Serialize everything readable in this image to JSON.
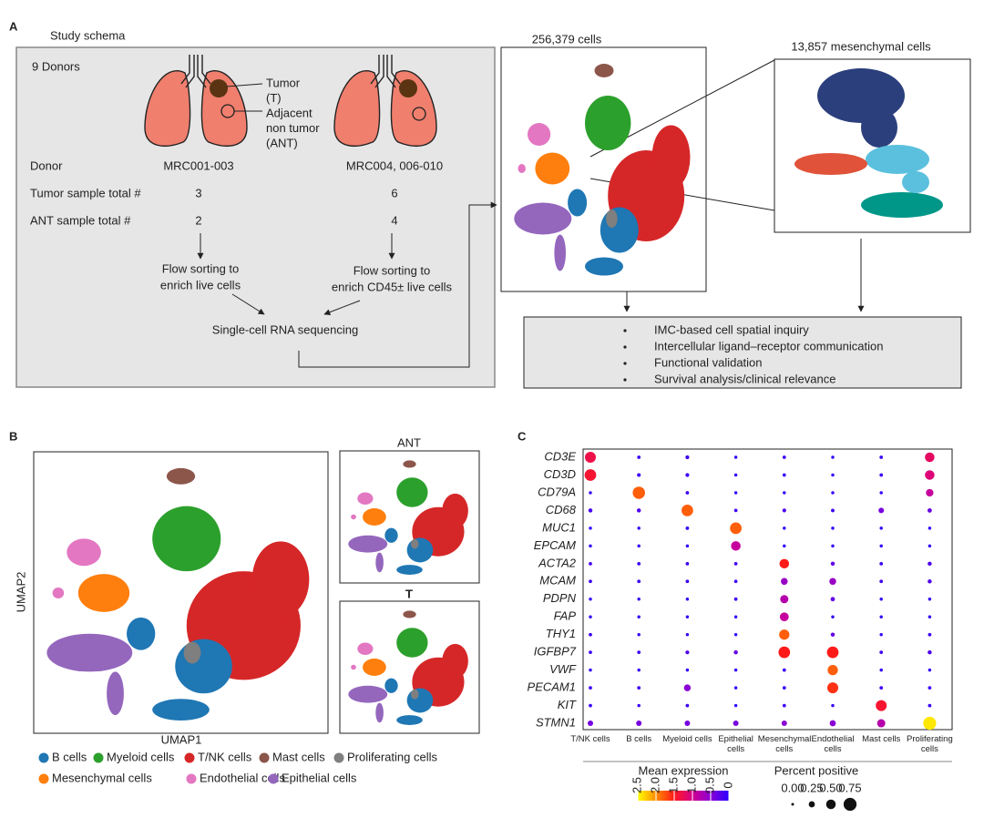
{
  "panel_a": {
    "label": "A",
    "title": "Study schema",
    "donors": "9 Donors",
    "lung_labels": [
      "Tumor",
      "(T)",
      "Adjacent",
      "non tumor",
      "(ANT)"
    ],
    "rows": [
      [
        "Donor",
        "MRC001-003",
        "MRC004, 006-010"
      ],
      [
        "Tumor sample total #",
        3,
        6
      ],
      [
        "ANT sample total #",
        2,
        4
      ]
    ],
    "flow": [
      [
        "Flow sorting to",
        "enrich live cells"
      ],
      [
        "Flow sorting to",
        "enrich CD45± live cells"
      ]
    ],
    "sequencing": "Single-cell RNA sequencing",
    "umap_title": "256,379 cells",
    "mesenchymal_title": "13,857 mesenchymal cells",
    "analyses": [
      "IMC-based cell spatial inquiry",
      "Intercellular ligand–receptor communication",
      "Functional validation",
      "Survival analysis/clinical relevance"
    ]
  },
  "panel_b": {
    "label": "B",
    "y_label": "UMAP2",
    "x_label": "UMAP1",
    "insets": [
      "ANT",
      "T"
    ],
    "legend": [
      {
        "name": "B cells",
        "color": "#1f77b4"
      },
      {
        "name": "Myeloid cells",
        "color": "#2ca02c"
      },
      {
        "name": "T/NK cells",
        "color": "#d62728"
      },
      {
        "name": "Mast cells",
        "color": "#8c564b"
      },
      {
        "name": "Proliferating cells",
        "color": "#7f7f7f"
      },
      {
        "name": "Mesenchymal cells",
        "color": "#ff7f0e"
      },
      {
        "name": "Endothelial cells",
        "color": "#e377c2"
      },
      {
        "name": "Epithelial cells",
        "color": "#9467bd"
      }
    ]
  },
  "chart_data": {
    "type": "dot",
    "panel_label": "C",
    "rows": [
      "CD3E",
      "CD3D",
      "CD79A",
      "CD68",
      "MUC1",
      "EPCAM",
      "ACTA2",
      "MCAM",
      "PDPN",
      "FAP",
      "THY1",
      "IGFBP7",
      "VWF",
      "PECAM1",
      "KIT",
      "STMN1"
    ],
    "categories": [
      "T/NK cells",
      "B cells",
      "Myeloid cells",
      "Epithelial cells",
      "Mesenchymal cells",
      "Endothelial cells",
      "Mast cells",
      "Proliferating cells"
    ],
    "expression": [
      [
        1.3,
        0.1,
        0.1,
        0.05,
        0.1,
        0.05,
        0.1,
        1.2
      ],
      [
        1.4,
        0.1,
        0.1,
        0.05,
        0.1,
        0.05,
        0.1,
        1.1
      ],
      [
        0.05,
        1.8,
        0.1,
        0.05,
        0.05,
        0.05,
        0.05,
        0.9
      ],
      [
        0.15,
        0.2,
        1.8,
        0.1,
        0.2,
        0.1,
        0.4,
        0.3
      ],
      [
        0.05,
        0.05,
        0.05,
        1.8,
        0.05,
        0.05,
        0.05,
        0.05
      ],
      [
        0.05,
        0.05,
        0.05,
        0.9,
        0.05,
        0.05,
        0.05,
        0.05
      ],
      [
        0.15,
        0.1,
        0.1,
        0.1,
        1.5,
        0.3,
        0.1,
        0.2
      ],
      [
        0.1,
        0.1,
        0.1,
        0.1,
        0.6,
        0.6,
        0.1,
        0.2
      ],
      [
        0.05,
        0.05,
        0.05,
        0.1,
        0.8,
        0.3,
        0.05,
        0.05
      ],
      [
        0.05,
        0.05,
        0.05,
        0.05,
        0.9,
        0.05,
        0.05,
        0.05
      ],
      [
        0.1,
        0.05,
        0.05,
        0.05,
        1.8,
        0.3,
        0.05,
        0.1
      ],
      [
        0.1,
        0.1,
        0.2,
        0.3,
        1.5,
        1.5,
        0.1,
        0.2
      ],
      [
        0.05,
        0.05,
        0.05,
        0.05,
        0.1,
        1.8,
        0.05,
        0.05
      ],
      [
        0.1,
        0.1,
        0.5,
        0.05,
        0.1,
        1.6,
        0.1,
        0.1
      ],
      [
        0.1,
        0.05,
        0.1,
        0.05,
        0.1,
        0.05,
        1.4,
        0.1
      ],
      [
        0.4,
        0.4,
        0.4,
        0.4,
        0.5,
        0.5,
        0.8,
        2.4
      ]
    ],
    "percent": [
      [
        0.6,
        0.05,
        0.08,
        0.03,
        0.05,
        0.03,
        0.05,
        0.5
      ],
      [
        0.65,
        0.07,
        0.08,
        0.03,
        0.05,
        0.03,
        0.05,
        0.5
      ],
      [
        0.03,
        0.7,
        0.05,
        0.03,
        0.03,
        0.03,
        0.03,
        0.35
      ],
      [
        0.1,
        0.1,
        0.65,
        0.05,
        0.08,
        0.06,
        0.2,
        0.12
      ],
      [
        0.03,
        0.03,
        0.05,
        0.65,
        0.03,
        0.03,
        0.03,
        0.03
      ],
      [
        0.03,
        0.03,
        0.03,
        0.5,
        0.03,
        0.03,
        0.03,
        0.03
      ],
      [
        0.05,
        0.05,
        0.05,
        0.05,
        0.5,
        0.1,
        0.05,
        0.1
      ],
      [
        0.05,
        0.05,
        0.05,
        0.05,
        0.3,
        0.3,
        0.05,
        0.1
      ],
      [
        0.03,
        0.03,
        0.03,
        0.05,
        0.4,
        0.12,
        0.03,
        0.03
      ],
      [
        0.03,
        0.03,
        0.03,
        0.03,
        0.45,
        0.03,
        0.03,
        0.03
      ],
      [
        0.05,
        0.03,
        0.03,
        0.03,
        0.55,
        0.1,
        0.03,
        0.05
      ],
      [
        0.05,
        0.05,
        0.08,
        0.1,
        0.65,
        0.65,
        0.05,
        0.1
      ],
      [
        0.03,
        0.03,
        0.03,
        0.03,
        0.05,
        0.55,
        0.03,
        0.03
      ],
      [
        0.05,
        0.05,
        0.3,
        0.03,
        0.05,
        0.6,
        0.05,
        0.05
      ],
      [
        0.05,
        0.03,
        0.05,
        0.03,
        0.05,
        0.03,
        0.6,
        0.05
      ],
      [
        0.2,
        0.2,
        0.2,
        0.2,
        0.2,
        0.25,
        0.4,
        0.75
      ]
    ],
    "color_label": "Mean expression",
    "clim": [
      0,
      2.5
    ],
    "colors": [
      "#2a00ff",
      "#8a00d4",
      "#d4008f",
      "#ff1a1a",
      "#ff8c00",
      "#ffff00"
    ],
    "cticks": [
      2.5,
      {
        "value": 2,
        "label": "2.0"
      },
      {
        "value": 1.5,
        "label": "1.5"
      },
      {
        "value": 1,
        "label": "1.0"
      },
      0.5,
      0
    ],
    "size_label": "Percent positive",
    "sizeticks": [
      {
        "value": 0,
        "label": "0.00"
      },
      0.25,
      {
        "value": 0.5,
        "label": "0.50"
      },
      0.75
    ]
  }
}
